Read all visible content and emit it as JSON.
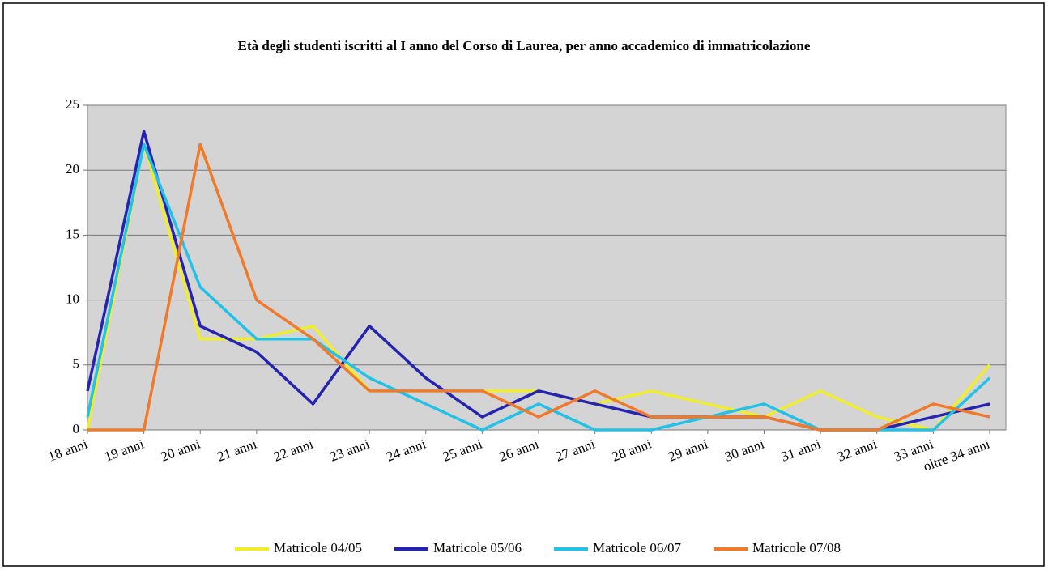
{
  "chart_data": {
    "type": "line",
    "title": "Età degli studenti iscritti al I anno del Corso di Laurea, per anno accademico di immatricolazione",
    "categories": [
      "18 anni",
      "19 anni",
      "20 anni",
      "21 anni",
      "22 anni",
      "23 anni",
      "24 anni",
      "25 anni",
      "26 anni",
      "27 anni",
      "28 anni",
      "29 anni",
      "30 anni",
      "31 anni",
      "32 anni",
      "33 anni",
      "oltre 34 anni"
    ],
    "series": [
      {
        "name": "Matricole 04/05",
        "color": "#f0ee2c",
        "values": [
          0,
          22,
          7,
          7,
          8,
          3,
          3,
          3,
          3,
          2,
          3,
          2,
          1,
          3,
          1,
          0,
          5
        ]
      },
      {
        "name": "Matricole 05/06",
        "color": "#2424b0",
        "values": [
          3,
          23,
          8,
          6,
          2,
          8,
          4,
          1,
          3,
          2,
          1,
          1,
          1,
          0,
          0,
          1,
          2
        ]
      },
      {
        "name": "Matricole 06/07",
        "color": "#22c2e8",
        "values": [
          1,
          22,
          11,
          7,
          7,
          4,
          2,
          0,
          2,
          0,
          0,
          1,
          2,
          0,
          0,
          0,
          4
        ]
      },
      {
        "name": "Matricole 07/08",
        "color": "#f07a2a",
        "values": [
          0,
          0,
          22,
          10,
          7,
          3,
          3,
          3,
          1,
          3,
          1,
          1,
          1,
          0,
          0,
          2,
          1
        ]
      }
    ],
    "ylim": [
      0,
      25
    ],
    "yticks": [
      0,
      5,
      10,
      15,
      20,
      25
    ],
    "grid": true
  }
}
